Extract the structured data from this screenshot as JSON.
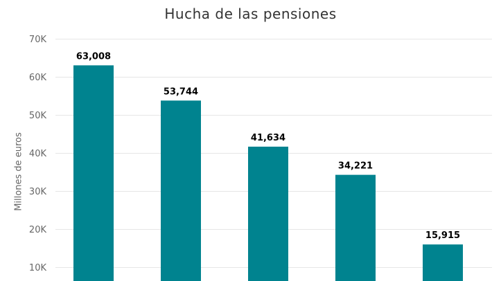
{
  "chart_data": {
    "type": "bar",
    "title": "Hucha de las pensiones",
    "ylabel": "Millones de euros",
    "xlabel": "",
    "categories": [
      "",
      "",
      "",
      "",
      ""
    ],
    "values": [
      63008,
      53744,
      41634,
      34221,
      15915
    ],
    "data_labels": [
      "63,008",
      "53,744",
      "41,634",
      "34,221",
      "15,915"
    ],
    "y_ticks": [
      10000,
      20000,
      30000,
      40000,
      50000,
      60000,
      70000
    ],
    "y_tick_labels": [
      "10K",
      "20K",
      "30K",
      "40K",
      "50K",
      "60K",
      "70K"
    ],
    "ylim": [
      6300,
      70000
    ],
    "grid": true,
    "legend": "none",
    "colors": {
      "bar": "#00838f",
      "gridline": "#e6e6e6",
      "tick_text": "#666666",
      "data_label": "#000000"
    }
  }
}
